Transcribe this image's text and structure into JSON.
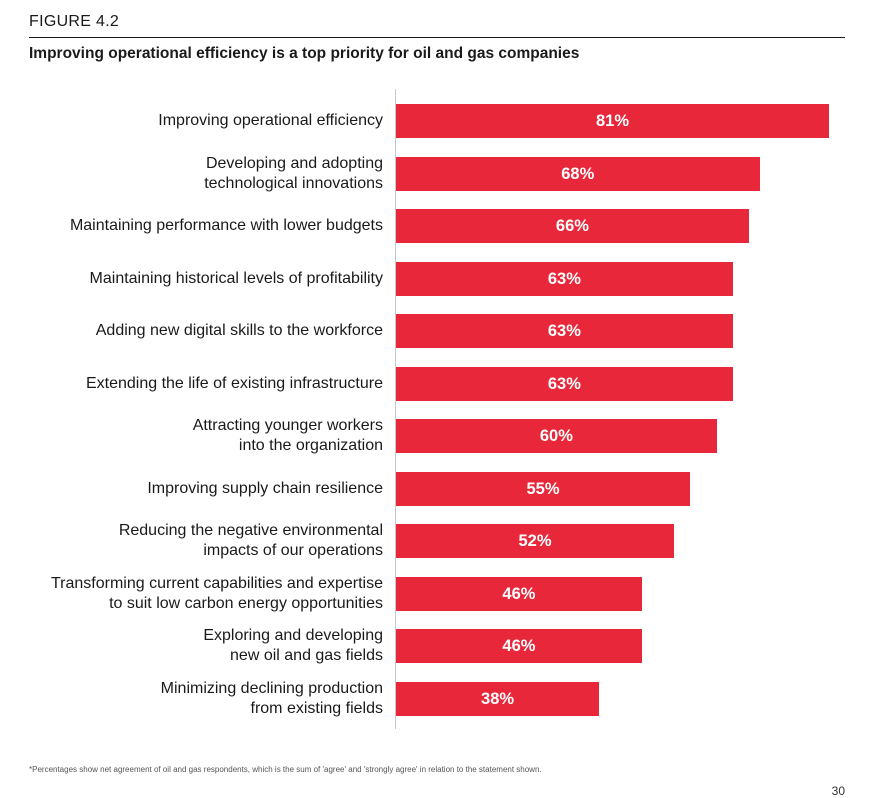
{
  "figure_label": "FIGURE 4.2",
  "footnote": "*Percentages show net agreement of oil and gas respondents, which is the sum of 'agree' and 'strongly agree' in relation to the statement shown.",
  "page_number": "30",
  "chart_data": {
    "type": "bar",
    "orientation": "horizontal",
    "title": "Improving operational efficiency is a top priority for oil and gas companies",
    "xlabel": "",
    "ylabel": "",
    "xlim": [
      0,
      100
    ],
    "bar_color": "#e8273a",
    "categories": [
      "Improving operational efficiency",
      "Developing and adopting\ntechnological innovations",
      "Maintaining performance with lower budgets",
      "Maintaining historical levels of profitability",
      "Adding new digital skills to the workforce",
      "Extending the life of existing infrastructure",
      "Attracting younger workers\ninto the organization",
      "Improving supply chain resilience",
      "Reducing the negative environmental\nimpacts of our operations",
      "Transforming current capabilities and expertise\nto suit low carbon energy opportunities",
      "Exploring and developing\nnew oil and gas fields",
      "Minimizing declining production\nfrom existing fields"
    ],
    "values": [
      81,
      68,
      66,
      63,
      63,
      63,
      60,
      55,
      52,
      46,
      46,
      38
    ],
    "value_labels": [
      "81%",
      "68%",
      "66%",
      "63%",
      "63%",
      "63%",
      "60%",
      "55%",
      "52%",
      "46%",
      "46%",
      "38%"
    ]
  }
}
